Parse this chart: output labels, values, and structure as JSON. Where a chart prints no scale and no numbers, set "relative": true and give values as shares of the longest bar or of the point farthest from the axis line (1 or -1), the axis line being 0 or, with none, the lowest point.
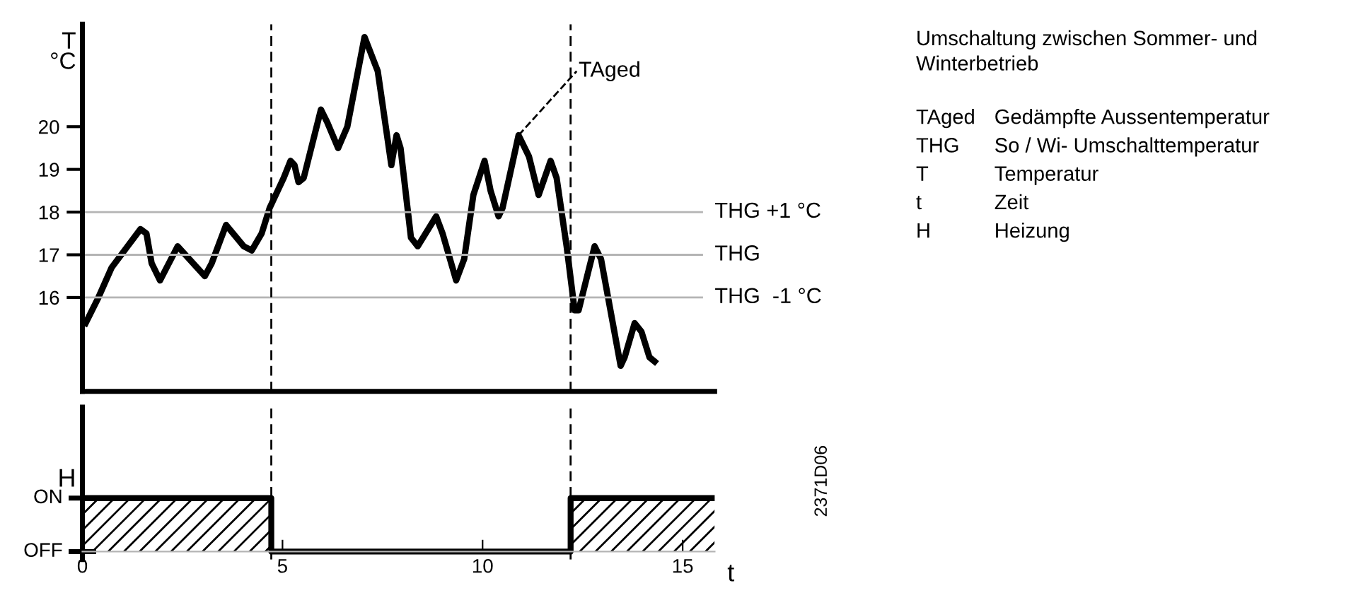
{
  "chart_data": [
    {
      "type": "line",
      "ylabel": "T\n°C",
      "tick_labels": "y",
      "xlim": [
        0,
        15.8
      ],
      "ylim": [
        13.8,
        22.4
      ],
      "yticks": [
        16,
        17,
        18,
        19,
        20
      ],
      "line_style": "solid",
      "marker": "none",
      "grid": false,
      "series": [
        {
          "name": "TAged",
          "color": "#000000",
          "x": [
            0.08,
            0.4,
            0.73,
            1.13,
            1.45,
            1.6,
            1.73,
            1.94,
            2.38,
            3.06,
            3.23,
            3.59,
            4.03,
            4.23,
            4.48,
            4.68,
            5.03,
            5.2,
            5.3,
            5.4,
            5.53,
            5.96,
            6.12,
            6.39,
            6.62,
            7.05,
            7.38,
            7.72,
            7.85,
            7.95,
            8.21,
            8.38,
            8.84,
            9.0,
            9.34,
            9.54,
            9.77,
            10.05,
            10.2,
            10.4,
            10.5,
            10.9,
            11.16,
            11.4,
            11.7,
            11.85,
            12.1,
            12.3,
            12.4,
            12.8,
            12.96,
            13.45,
            13.55,
            13.8,
            13.97,
            14.17,
            14.3
          ],
          "values": [
            15.4,
            16.0,
            16.7,
            17.2,
            17.6,
            17.5,
            16.8,
            16.4,
            17.2,
            16.5,
            16.8,
            17.7,
            17.2,
            17.1,
            17.5,
            18.1,
            18.8,
            19.2,
            19.1,
            18.7,
            18.8,
            20.4,
            20.1,
            19.5,
            20.0,
            22.1,
            21.3,
            19.1,
            19.8,
            19.5,
            17.4,
            17.2,
            17.9,
            17.5,
            16.4,
            16.9,
            18.4,
            19.2,
            18.5,
            17.9,
            18.1,
            19.8,
            19.3,
            18.4,
            19.2,
            18.8,
            17.2,
            15.7,
            15.7,
            17.2,
            16.9,
            14.4,
            14.6,
            15.4,
            15.2,
            14.6,
            14.5
          ]
        }
      ],
      "ref_lines": [
        {
          "axis": "y",
          "value": 18,
          "label": "THG +1 °C",
          "color": "#b4b4b4",
          "line_style": "solid"
        },
        {
          "axis": "y",
          "value": 17,
          "label": "THG",
          "color": "#b4b4b4",
          "line_style": "solid"
        },
        {
          "axis": "y",
          "value": 16,
          "label": "THG  -1 °C",
          "color": "#b4b4b4",
          "line_style": "solid"
        },
        {
          "axis": "x",
          "value": 4.72,
          "color": "#000000",
          "line_style": "dashed"
        },
        {
          "axis": "x",
          "value": 12.2,
          "color": "#000000",
          "line_style": "dashed"
        }
      ]
    },
    {
      "type": "area",
      "ylabel": "H",
      "xlabel": "t",
      "xlim": [
        0,
        15.8
      ],
      "relative": true,
      "xticks": [
        0,
        5,
        10,
        15
      ],
      "color": "#000000",
      "grid": false,
      "x": [
        0,
        4.72,
        4.72,
        12.2,
        12.2,
        15.8
      ],
      "values": [
        1,
        1,
        0,
        0,
        1,
        1
      ],
      "ref_lines": [
        {
          "axis": "x",
          "value": 4.72,
          "color": "#000000",
          "line_style": "dashed"
        },
        {
          "axis": "x",
          "value": 12.2,
          "color": "#000000",
          "line_style": "dashed"
        }
      ],
      "annotations": [
        "2371D06",
        "ON",
        "OFF"
      ]
    },
    {
      "type": "other",
      "title": "Umschaltung zwischen Sommer- und Winterbetrieb",
      "annotations": [
        "TAged",
        "Gedämpfte Aussentemperatur",
        "THG",
        "So / Wi- Umschalttemperatur",
        "T",
        "Temperatur",
        "t",
        "Zeit",
        "H",
        "Heizung"
      ]
    }
  ]
}
